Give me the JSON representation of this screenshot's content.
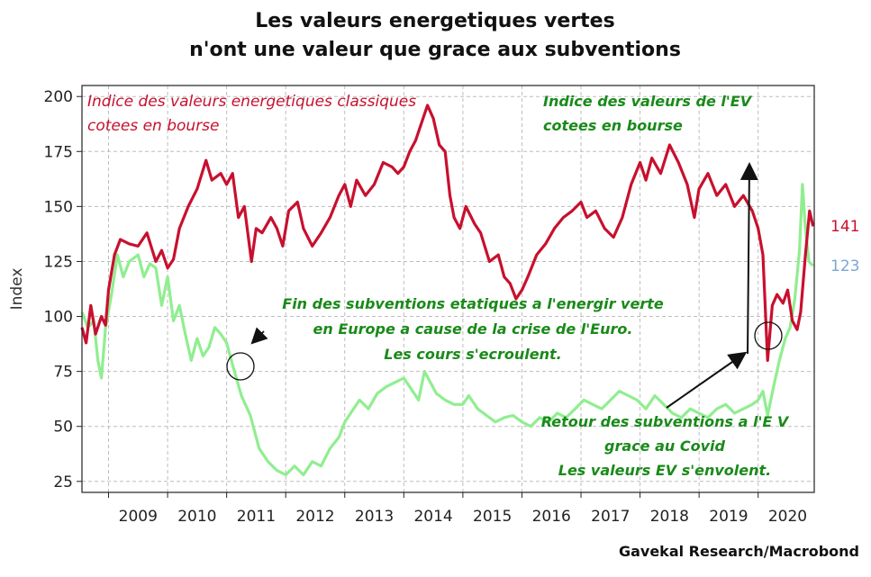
{
  "chart_data": {
    "type": "line",
    "title": [
      "Les valeurs energetiques vertes",
      "n'ont une valeur que grace aux subventions"
    ],
    "ylabel": "Index",
    "xlabel": "",
    "ylim": [
      20,
      205
    ],
    "yticks": [
      25,
      50,
      75,
      100,
      125,
      150,
      175,
      200
    ],
    "x_range": [
      2008.55,
      2020.95
    ],
    "x_tick_labels": [
      "2009",
      "2010",
      "2011",
      "2012",
      "2013",
      "2014",
      "2015",
      "2016",
      "2017",
      "2018",
      "2019",
      "2020"
    ],
    "grid": true,
    "series": [
      {
        "name": "Indice des valeurs energetiques classiques cotees en bourse",
        "color": "#c8102e",
        "end_label": "141",
        "points": [
          [
            2008.55,
            95
          ],
          [
            2008.62,
            88
          ],
          [
            2008.7,
            105
          ],
          [
            2008.78,
            92
          ],
          [
            2008.88,
            100
          ],
          [
            2008.95,
            96
          ],
          [
            2009.0,
            112
          ],
          [
            2009.1,
            128
          ],
          [
            2009.2,
            135
          ],
          [
            2009.35,
            133
          ],
          [
            2009.5,
            132
          ],
          [
            2009.65,
            138
          ],
          [
            2009.8,
            125
          ],
          [
            2009.9,
            130
          ],
          [
            2010.0,
            122
          ],
          [
            2010.1,
            126
          ],
          [
            2010.2,
            140
          ],
          [
            2010.35,
            150
          ],
          [
            2010.5,
            158
          ],
          [
            2010.65,
            171
          ],
          [
            2010.75,
            162
          ],
          [
            2010.9,
            165
          ],
          [
            2011.0,
            160
          ],
          [
            2011.1,
            165
          ],
          [
            2011.2,
            145
          ],
          [
            2011.3,
            150
          ],
          [
            2011.42,
            125
          ],
          [
            2011.5,
            140
          ],
          [
            2011.6,
            138
          ],
          [
            2011.75,
            145
          ],
          [
            2011.85,
            140
          ],
          [
            2011.95,
            132
          ],
          [
            2012.05,
            148
          ],
          [
            2012.2,
            152
          ],
          [
            2012.3,
            140
          ],
          [
            2012.45,
            132
          ],
          [
            2012.6,
            138
          ],
          [
            2012.75,
            145
          ],
          [
            2012.9,
            155
          ],
          [
            2013.0,
            160
          ],
          [
            2013.1,
            150
          ],
          [
            2013.2,
            162
          ],
          [
            2013.35,
            155
          ],
          [
            2013.5,
            160
          ],
          [
            2013.65,
            170
          ],
          [
            2013.8,
            168
          ],
          [
            2013.9,
            165
          ],
          [
            2014.0,
            168
          ],
          [
            2014.1,
            175
          ],
          [
            2014.2,
            180
          ],
          [
            2014.3,
            188
          ],
          [
            2014.4,
            196
          ],
          [
            2014.5,
            190
          ],
          [
            2014.6,
            178
          ],
          [
            2014.7,
            175
          ],
          [
            2014.78,
            155
          ],
          [
            2014.85,
            145
          ],
          [
            2014.95,
            140
          ],
          [
            2015.05,
            150
          ],
          [
            2015.2,
            142
          ],
          [
            2015.3,
            138
          ],
          [
            2015.45,
            125
          ],
          [
            2015.6,
            128
          ],
          [
            2015.7,
            118
          ],
          [
            2015.8,
            115
          ],
          [
            2015.9,
            108
          ],
          [
            2016.0,
            112
          ],
          [
            2016.1,
            118
          ],
          [
            2016.25,
            128
          ],
          [
            2016.4,
            133
          ],
          [
            2016.55,
            140
          ],
          [
            2016.7,
            145
          ],
          [
            2016.85,
            148
          ],
          [
            2017.0,
            152
          ],
          [
            2017.1,
            145
          ],
          [
            2017.25,
            148
          ],
          [
            2017.4,
            140
          ],
          [
            2017.55,
            136
          ],
          [
            2017.7,
            145
          ],
          [
            2017.85,
            160
          ],
          [
            2018.0,
            170
          ],
          [
            2018.1,
            162
          ],
          [
            2018.2,
            172
          ],
          [
            2018.35,
            165
          ],
          [
            2018.5,
            178
          ],
          [
            2018.65,
            170
          ],
          [
            2018.8,
            160
          ],
          [
            2018.92,
            145
          ],
          [
            2019.0,
            158
          ],
          [
            2019.15,
            165
          ],
          [
            2019.3,
            155
          ],
          [
            2019.45,
            160
          ],
          [
            2019.6,
            150
          ],
          [
            2019.75,
            155
          ],
          [
            2019.9,
            148
          ],
          [
            2020.0,
            140
          ],
          [
            2020.08,
            128
          ],
          [
            2020.16,
            80
          ],
          [
            2020.24,
            105
          ],
          [
            2020.32,
            110
          ],
          [
            2020.42,
            106
          ],
          [
            2020.5,
            112
          ],
          [
            2020.58,
            98
          ],
          [
            2020.66,
            94
          ],
          [
            2020.72,
            102
          ],
          [
            2020.8,
            128
          ],
          [
            2020.87,
            148
          ],
          [
            2020.93,
            141
          ]
        ]
      },
      {
        "name": "Indice des valeurs de l'EV cotees en bourse",
        "color": "#90ee90",
        "end_label": "123",
        "points": [
          [
            2008.55,
            102
          ],
          [
            2008.65,
            95
          ],
          [
            2008.75,
            98
          ],
          [
            2008.82,
            80
          ],
          [
            2008.88,
            72
          ],
          [
            2008.95,
            95
          ],
          [
            2009.05,
            110
          ],
          [
            2009.15,
            128
          ],
          [
            2009.25,
            118
          ],
          [
            2009.35,
            125
          ],
          [
            2009.5,
            128
          ],
          [
            2009.6,
            118
          ],
          [
            2009.7,
            124
          ],
          [
            2009.8,
            122
          ],
          [
            2009.9,
            105
          ],
          [
            2010.0,
            118
          ],
          [
            2010.1,
            98
          ],
          [
            2010.2,
            105
          ],
          [
            2010.3,
            92
          ],
          [
            2010.4,
            80
          ],
          [
            2010.5,
            90
          ],
          [
            2010.6,
            82
          ],
          [
            2010.7,
            86
          ],
          [
            2010.8,
            95
          ],
          [
            2010.9,
            92
          ],
          [
            2011.0,
            88
          ],
          [
            2011.1,
            78
          ],
          [
            2011.25,
            64
          ],
          [
            2011.4,
            55
          ],
          [
            2011.55,
            40
          ],
          [
            2011.7,
            34
          ],
          [
            2011.85,
            30
          ],
          [
            2012.0,
            28
          ],
          [
            2012.15,
            32
          ],
          [
            2012.3,
            28
          ],
          [
            2012.45,
            34
          ],
          [
            2012.6,
            32
          ],
          [
            2012.75,
            40
          ],
          [
            2012.9,
            45
          ],
          [
            2013.0,
            52
          ],
          [
            2013.1,
            56
          ],
          [
            2013.25,
            62
          ],
          [
            2013.4,
            58
          ],
          [
            2013.55,
            65
          ],
          [
            2013.7,
            68
          ],
          [
            2013.85,
            70
          ],
          [
            2014.0,
            72
          ],
          [
            2014.1,
            68
          ],
          [
            2014.25,
            62
          ],
          [
            2014.35,
            75
          ],
          [
            2014.45,
            70
          ],
          [
            2014.55,
            65
          ],
          [
            2014.7,
            62
          ],
          [
            2014.85,
            60
          ],
          [
            2015.0,
            60
          ],
          [
            2015.1,
            64
          ],
          [
            2015.25,
            58
          ],
          [
            2015.4,
            55
          ],
          [
            2015.55,
            52
          ],
          [
            2015.7,
            54
          ],
          [
            2015.85,
            55
          ],
          [
            2016.0,
            52
          ],
          [
            2016.15,
            50
          ],
          [
            2016.3,
            54
          ],
          [
            2016.45,
            52
          ],
          [
            2016.6,
            56
          ],
          [
            2016.75,
            54
          ],
          [
            2016.9,
            58
          ],
          [
            2017.05,
            62
          ],
          [
            2017.2,
            60
          ],
          [
            2017.35,
            58
          ],
          [
            2017.5,
            62
          ],
          [
            2017.65,
            66
          ],
          [
            2017.8,
            64
          ],
          [
            2017.95,
            62
          ],
          [
            2018.1,
            58
          ],
          [
            2018.25,
            64
          ],
          [
            2018.4,
            60
          ],
          [
            2018.55,
            56
          ],
          [
            2018.7,
            54
          ],
          [
            2018.85,
            58
          ],
          [
            2019.0,
            56
          ],
          [
            2019.15,
            54
          ],
          [
            2019.3,
            58
          ],
          [
            2019.45,
            60
          ],
          [
            2019.6,
            56
          ],
          [
            2019.75,
            58
          ],
          [
            2019.9,
            60
          ],
          [
            2020.0,
            62
          ],
          [
            2020.08,
            66
          ],
          [
            2020.16,
            55
          ],
          [
            2020.26,
            68
          ],
          [
            2020.36,
            80
          ],
          [
            2020.46,
            90
          ],
          [
            2020.54,
            95
          ],
          [
            2020.62,
            108
          ],
          [
            2020.7,
            130
          ],
          [
            2020.75,
            160
          ],
          [
            2020.8,
            140
          ],
          [
            2020.86,
            125
          ],
          [
            2020.93,
            123
          ]
        ]
      }
    ],
    "annotations": {
      "red_label": [
        "Indice des valeurs energetiques classiques",
        "cotees en bourse"
      ],
      "green_label": [
        "Indice des valeurs de l'EV",
        "cotees en bourse"
      ],
      "note_1": [
        "Fin des subventions etatiques a l'energir verte",
        "en Europe a cause de la crise de l'Euro.",
        "Les cours s'ecroulent."
      ],
      "note_2": [
        "Retour des subventions a l'E V",
        "grace au Covid",
        "Les valeurs EV s'envolent."
      ]
    },
    "source": "Gavekal Research/Macrobond"
  }
}
